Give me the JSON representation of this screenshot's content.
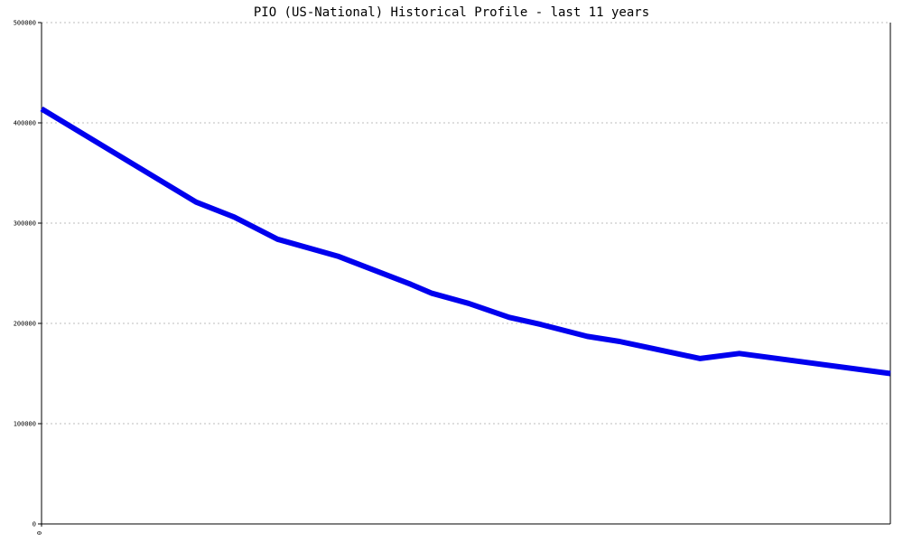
{
  "chart_data": {
    "type": "line",
    "title": "PIO (US-National) Historical Profile - last 11 years",
    "xlabel": "",
    "ylabel": "",
    "ylim": [
      0,
      500000
    ],
    "y_ticks": [
      0,
      100000,
      200000,
      300000,
      400000,
      500000
    ],
    "y_tick_labels": [
      "0",
      "100000",
      "200000",
      "300000",
      "400000",
      "500000"
    ],
    "x_tick_labels": [
      "0"
    ],
    "x": [
      0,
      0.182,
      0.227,
      0.278,
      0.349,
      0.435,
      0.46,
      0.503,
      0.551,
      0.588,
      0.643,
      0.681,
      0.776,
      0.822,
      1.0
    ],
    "series": [
      {
        "color": "#0000ee",
        "values": [
          414000,
          321000,
          306000,
          284000,
          267000,
          239000,
          230000,
          220000,
          206000,
          199000,
          187000,
          182000,
          165000,
          170000,
          150000
        ]
      }
    ],
    "grid": true,
    "grid_axis": "y",
    "legend": "none"
  }
}
